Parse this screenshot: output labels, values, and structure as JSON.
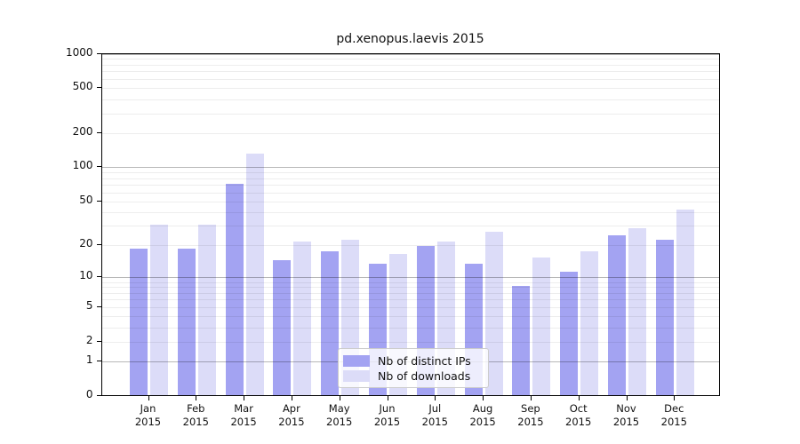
{
  "chart_data": {
    "type": "bar",
    "title": "pd.xenopus.laevis 2015",
    "categories": [
      "Jan",
      "Feb",
      "Mar",
      "Apr",
      "May",
      "Jun",
      "Jul",
      "Aug",
      "Sep",
      "Oct",
      "Nov",
      "Dec"
    ],
    "category_year": "2015",
    "series": [
      {
        "name": "Nb of distinct IPs",
        "color": "#a3a3f2",
        "values": [
          18,
          18,
          70,
          14,
          17,
          13,
          19,
          13,
          8,
          11,
          24,
          22
        ]
      },
      {
        "name": "Nb of downloads",
        "color": "#dcdcf8",
        "values": [
          30,
          30,
          128,
          21,
          22,
          16,
          21,
          26,
          15,
          17,
          28,
          41
        ]
      }
    ],
    "ylabel": "",
    "xlabel": "",
    "y_scale": "log10(value+1)",
    "y_ticks": [
      0,
      1,
      2,
      5,
      10,
      20,
      50,
      100,
      200,
      500,
      1000
    ],
    "ylim": [
      0,
      1500
    ],
    "grid": {
      "major": [
        1,
        10,
        100,
        1000
      ],
      "minor": [
        2,
        3,
        4,
        5,
        6,
        7,
        8,
        9,
        20,
        30,
        40,
        50,
        60,
        70,
        80,
        90,
        200,
        300,
        400,
        500,
        600,
        700,
        800,
        900
      ]
    },
    "legend_position": "bottom-center-inside"
  }
}
